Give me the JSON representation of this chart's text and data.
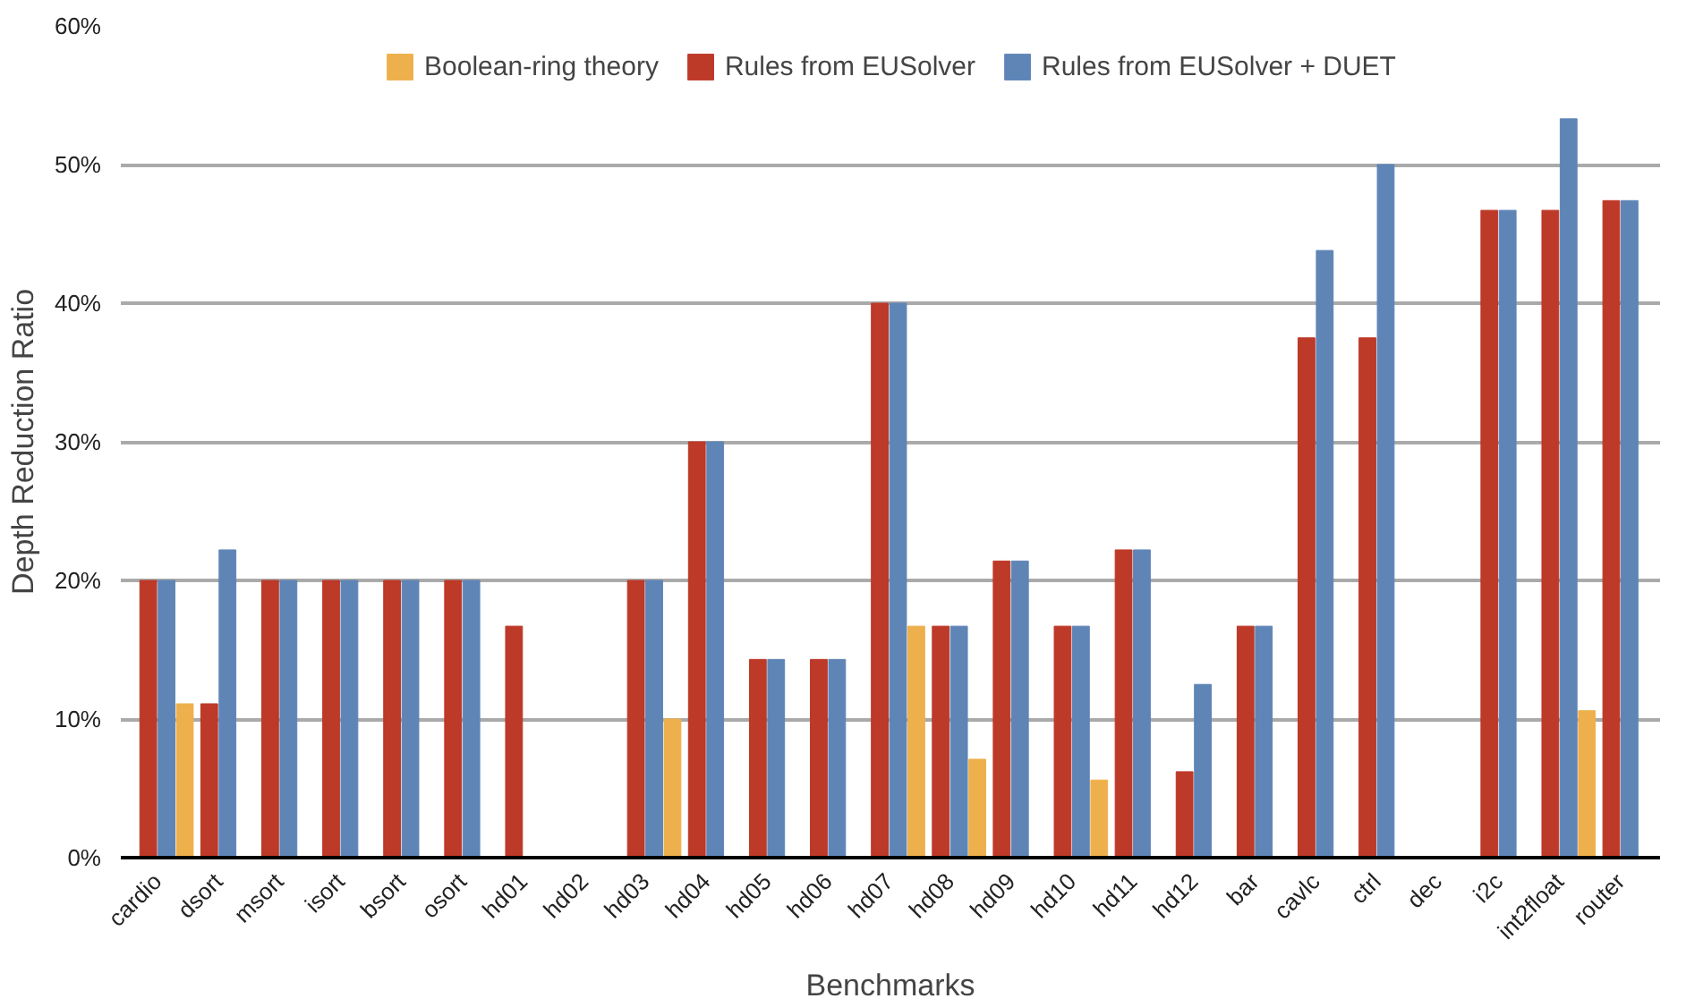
{
  "chart_data": {
    "type": "bar",
    "xlabel": "Benchmarks",
    "ylabel": "Depth Reduction Ratio",
    "categories": [
      "cardio",
      "dsort",
      "msort",
      "isort",
      "bsort",
      "osort",
      "hd01",
      "hd02",
      "hd03",
      "hd04",
      "hd05",
      "hd06",
      "hd07",
      "hd08",
      "hd09",
      "hd10",
      "hd11",
      "hd12",
      "bar",
      "cavlc",
      "ctrl",
      "dec",
      "i2c",
      "int2float",
      "router"
    ],
    "series": [
      {
        "name": "Boolean-ring theory",
        "color": "#eeb04c",
        "values": [
          11.1,
          null,
          null,
          null,
          null,
          null,
          null,
          null,
          10,
          null,
          null,
          null,
          16.7,
          7.1,
          null,
          5.6,
          null,
          null,
          null,
          null,
          null,
          null,
          null,
          10.6,
          null
        ]
      },
      {
        "name": "Rules from EUSolver",
        "color": "#bd3928",
        "values": [
          20,
          11.1,
          20,
          20,
          20,
          20,
          16.7,
          null,
          20,
          30,
          14.3,
          14.3,
          40,
          16.7,
          21.4,
          16.7,
          22.2,
          6.2,
          16.7,
          37.5,
          37.5,
          null,
          46.7,
          46.7,
          47.4
        ]
      },
      {
        "name": "Rules from EUSolver + DUET",
        "color": "#5f85b7",
        "values": [
          20,
          22.2,
          20,
          20,
          20,
          20,
          null,
          null,
          20,
          30,
          14.3,
          14.3,
          40,
          16.7,
          21.4,
          16.7,
          22.2,
          12.5,
          16.7,
          43.8,
          50,
          null,
          46.7,
          53.3,
          47.4
        ]
      }
    ],
    "ylim": [
      0,
      60
    ],
    "yticks": [
      {
        "value": 0,
        "label": "0%"
      },
      {
        "value": 10,
        "label": "10%"
      },
      {
        "value": 20,
        "label": "20%"
      },
      {
        "value": 30,
        "label": "30%"
      },
      {
        "value": 40,
        "label": "40%"
      },
      {
        "value": 50,
        "label": "50%"
      },
      {
        "value": 60,
        "label": "60%"
      }
    ],
    "grid": "y",
    "legend": "top"
  }
}
